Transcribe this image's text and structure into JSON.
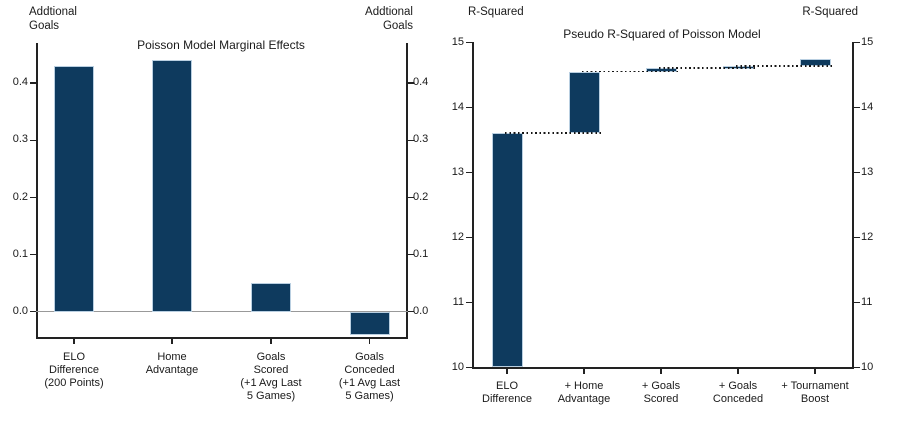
{
  "figure": {
    "background": "#ffffff",
    "colors": {
      "bar_fill": "#0e3a5e",
      "bar_edge": "#b9cfe1",
      "zero_line": "#999999",
      "axis": "#222222",
      "text": "#1a1a1a",
      "connector": "#151515"
    }
  },
  "chart_data": [
    {
      "type": "bar",
      "title": "Poisson Model Marginal Effects",
      "ylabel": "Addtional Goals",
      "ylabel_lines": [
        "Addtional",
        "Goals"
      ],
      "xlabel": "",
      "categories": [
        "ELO Difference (200 Points)",
        "Home Advantage",
        "Goals Scored (+1 Avg Last 5 Games)",
        "Goals Conceded (+1 Avg Last 5 Games)"
      ],
      "category_lines": [
        [
          "ELO",
          "Difference",
          "(200 Points)"
        ],
        [
          "Home",
          "Advantage"
        ],
        [
          "Goals",
          "Scored",
          "(+1 Avg Last",
          "5 Games)"
        ],
        [
          "Goals",
          "Conceded",
          "(+1 Avg Last",
          "5 Games)"
        ]
      ],
      "values": [
        0.43,
        0.44,
        0.05,
        -0.04
      ],
      "yticks": [
        0.0,
        0.1,
        0.2,
        0.3,
        0.4
      ],
      "ytick_labels": [
        "0.0",
        "0.1",
        "0.2",
        "0.3",
        "0.4"
      ],
      "ylim": [
        -0.045,
        0.47
      ],
      "grid": false,
      "legend": "none",
      "zero_line": true,
      "dual_y_axis": true
    },
    {
      "type": "bar",
      "subtype": "waterfall",
      "title": "Pseudo R-Squared of Poisson Model",
      "ylabel": "R-Squared",
      "ylabel_lines": [
        "R-Squared"
      ],
      "xlabel": "",
      "categories": [
        "ELO Difference",
        "+ Home Advantage",
        "+ Goals Scored",
        "+ Goals Conceded",
        "+ Tournament Boost"
      ],
      "category_lines": [
        [
          "ELO",
          "Difference"
        ],
        [
          "+ Home",
          "Advantage"
        ],
        [
          "+ Goals",
          "Scored"
        ],
        [
          "+ Goals",
          "Conceded"
        ],
        [
          "+ Tournament",
          "Boost"
        ]
      ],
      "cumulative_values": [
        13.6,
        14.55,
        14.6,
        14.63,
        14.75
      ],
      "baseline": 10,
      "yticks": [
        10,
        11,
        12,
        13,
        14,
        15
      ],
      "ytick_labels": [
        "10",
        "11",
        "12",
        "13",
        "14",
        "15"
      ],
      "ylim": [
        10,
        15
      ],
      "grid": false,
      "legend": "none",
      "connectors": "dotted",
      "dual_y_axis": true
    }
  ]
}
